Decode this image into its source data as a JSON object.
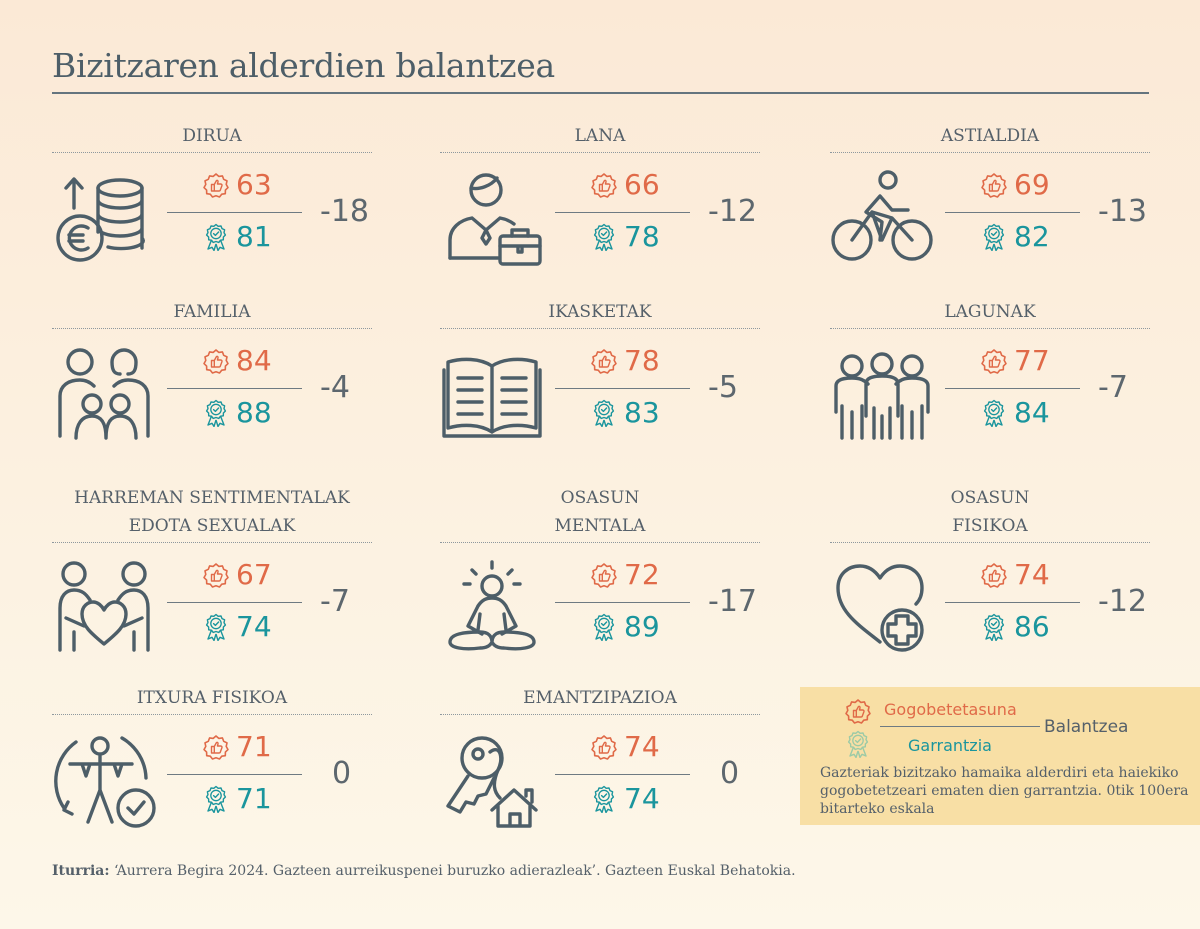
{
  "title": "Bizitzaren alderdien balantzea",
  "chart_data": {
    "type": "table",
    "title": "Bizitzaren alderdien balantzea",
    "columns": [
      "Gogobetetasuna",
      "Garrantzia",
      "Balantzea"
    ],
    "rows": [
      {
        "label": "DIRUA",
        "satisfaction": 63,
        "importance": 81,
        "balance": "-18",
        "icon": "coins-euro-icon"
      },
      {
        "label": "LANA",
        "satisfaction": 66,
        "importance": 78,
        "balance": "-12",
        "icon": "worker-briefcase-icon"
      },
      {
        "label": "ASTIALDIA",
        "satisfaction": 69,
        "importance": 82,
        "balance": "-13",
        "icon": "cyclist-icon"
      },
      {
        "label": "FAMILIA",
        "satisfaction": 84,
        "importance": 88,
        "balance": "-4",
        "icon": "family-icon"
      },
      {
        "label": "IKASKETAK",
        "satisfaction": 78,
        "importance": 83,
        "balance": "-5",
        "icon": "open-book-icon"
      },
      {
        "label": "LAGUNAK",
        "satisfaction": 77,
        "importance": 84,
        "balance": "-7",
        "icon": "friends-group-icon"
      },
      {
        "label": "HARREMAN SENTIMENTALAK EDOTA SEXUALAK",
        "label_lines": [
          "HARREMAN SENTIMENTALAK",
          "EDOTA SEXUALAK"
        ],
        "satisfaction": 67,
        "importance": 74,
        "balance": "-7",
        "icon": "couple-heart-icon"
      },
      {
        "label": "OSASUN MENTALA",
        "label_lines": [
          "OSASUN",
          "MENTALA"
        ],
        "satisfaction": 72,
        "importance": 89,
        "balance": "-17",
        "icon": "meditation-icon"
      },
      {
        "label": "OSASUN FISIKOA",
        "label_lines": [
          "OSASUN",
          "FISIKOA"
        ],
        "satisfaction": 74,
        "importance": 86,
        "balance": "-12",
        "icon": "heart-health-icon"
      },
      {
        "label": "ITXURA FISIKOA",
        "satisfaction": 71,
        "importance": 71,
        "balance": "0",
        "icon": "body-check-icon"
      },
      {
        "label": "EMANTZIPAZIOA",
        "satisfaction": 74,
        "importance": 74,
        "balance": "0",
        "icon": "key-house-icon"
      }
    ]
  },
  "legend": {
    "satisfaction_label": "Gogobetetasuna",
    "importance_label": "Garrantzia",
    "balance_label": "Balantzea",
    "description": "Gazteriak bizitzako hamaika alderdiri eta haiekiko gogobetetzeari ematen dien garrantzia. 0tik 100era bitarteko eskala"
  },
  "source": {
    "label": "Iturria:",
    "text": "‘Aurrera Begira 2024. Gazteen aurreikuspenei buruzko adierazleak’. Gazteen Euskal Behatokia."
  },
  "colors": {
    "satisfaction": "#e06a48",
    "importance": "#1a959d",
    "text": "#55606a",
    "legend_bg": "#f8dfa5"
  }
}
